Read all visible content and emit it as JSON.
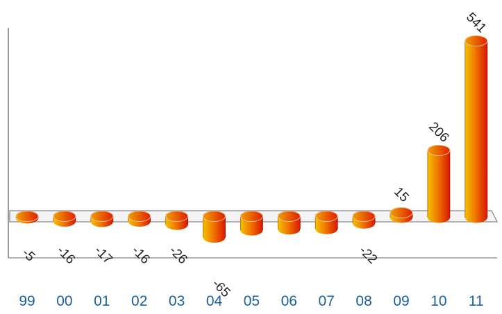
{
  "chart_data": {
    "type": "bar",
    "style": "3d-cylinder",
    "categories": [
      "99",
      "00",
      "01",
      "02",
      "03",
      "04",
      "05",
      "06",
      "07",
      "08",
      "09",
      "10",
      "11"
    ],
    "values": [
      -5,
      -16,
      -17,
      -16,
      -26,
      -65,
      -43,
      -40,
      -39,
      -22,
      15,
      206,
      541
    ],
    "data_labels": [
      "-5",
      "-16",
      "-17",
      "-16",
      "-26",
      "-65",
      "",
      "",
      "",
      "-22",
      "15",
      "206",
      "541"
    ],
    "ylim": [
      -60,
      560
    ],
    "title": "",
    "xlabel": "",
    "ylabel": "",
    "grid": false,
    "legend": "none",
    "colors": {
      "bar_light": "#f2c200",
      "bar_mid": "#f07800",
      "bar_dark": "#d81800",
      "bar_top": "#e83000",
      "axis": "#9a9a9a",
      "floor": "#f4f4f4",
      "category_label": "#1a5fa0",
      "data_label": "#222222"
    }
  }
}
